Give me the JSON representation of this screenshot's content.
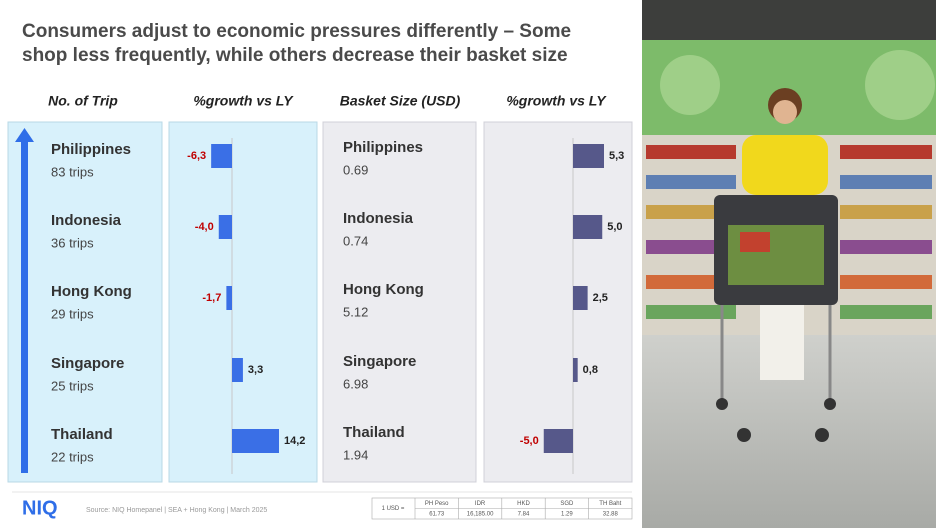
{
  "title_lines": [
    "Consumers adjust to economic pressures differently – Some",
    "shop less frequently, while others decrease their basket size"
  ],
  "trips": {
    "header": "No. of Trip",
    "rows": [
      {
        "country": "Philippines",
        "value": "83 trips"
      },
      {
        "country": "Indonesia",
        "value": "36 trips"
      },
      {
        "country": "Hong Kong",
        "value": "29 trips"
      },
      {
        "country": "Singapore",
        "value": "25 trips"
      },
      {
        "country": "Thailand",
        "value": "22 trips"
      }
    ]
  },
  "basket": {
    "header": "Basket Size (USD)",
    "rows": [
      {
        "country": "Philippines",
        "value": "0.69"
      },
      {
        "country": "Indonesia",
        "value": "0.74"
      },
      {
        "country": "Hong Kong",
        "value": "5.12"
      },
      {
        "country": "Singapore",
        "value": "6.98"
      },
      {
        "country": "Thailand",
        "value": "1.94"
      }
    ]
  },
  "chart_data": [
    {
      "type": "bar",
      "orientation": "horizontal",
      "title": "%growth vs LY",
      "values": [
        -6.3,
        -4.0,
        -1.7,
        3.3,
        14.2
      ],
      "value_labels": [
        "-6,3",
        "-4,0",
        "-1,7",
        "3,3",
        "14,2"
      ],
      "color": "#3a6fe6",
      "label_colors": {
        "negative": "#c00000",
        "positive": "#222222"
      }
    },
    {
      "type": "bar",
      "orientation": "horizontal",
      "title": "%growth vs LY",
      "values": [
        5.3,
        5.0,
        2.5,
        0.8,
        -5.0
      ],
      "value_labels": [
        "5,3",
        "5,0",
        "2,5",
        "0,8",
        "-5,0"
      ],
      "color": "#56588a",
      "label_colors": {
        "negative": "#c00000",
        "positive": "#222222"
      }
    }
  ],
  "footer": {
    "logo": "NIQ",
    "source": "Source: NIQ Homepanel | SEA + Hong Kong | March 2025",
    "fx": {
      "label": "1 USD =",
      "currencies": [
        "PH Peso",
        "IDR",
        "HKD",
        "SGD",
        "TH Baht"
      ],
      "rates": [
        "61.73",
        "16,185.00",
        "7.84",
        "1.29",
        "32.88"
      ]
    }
  }
}
